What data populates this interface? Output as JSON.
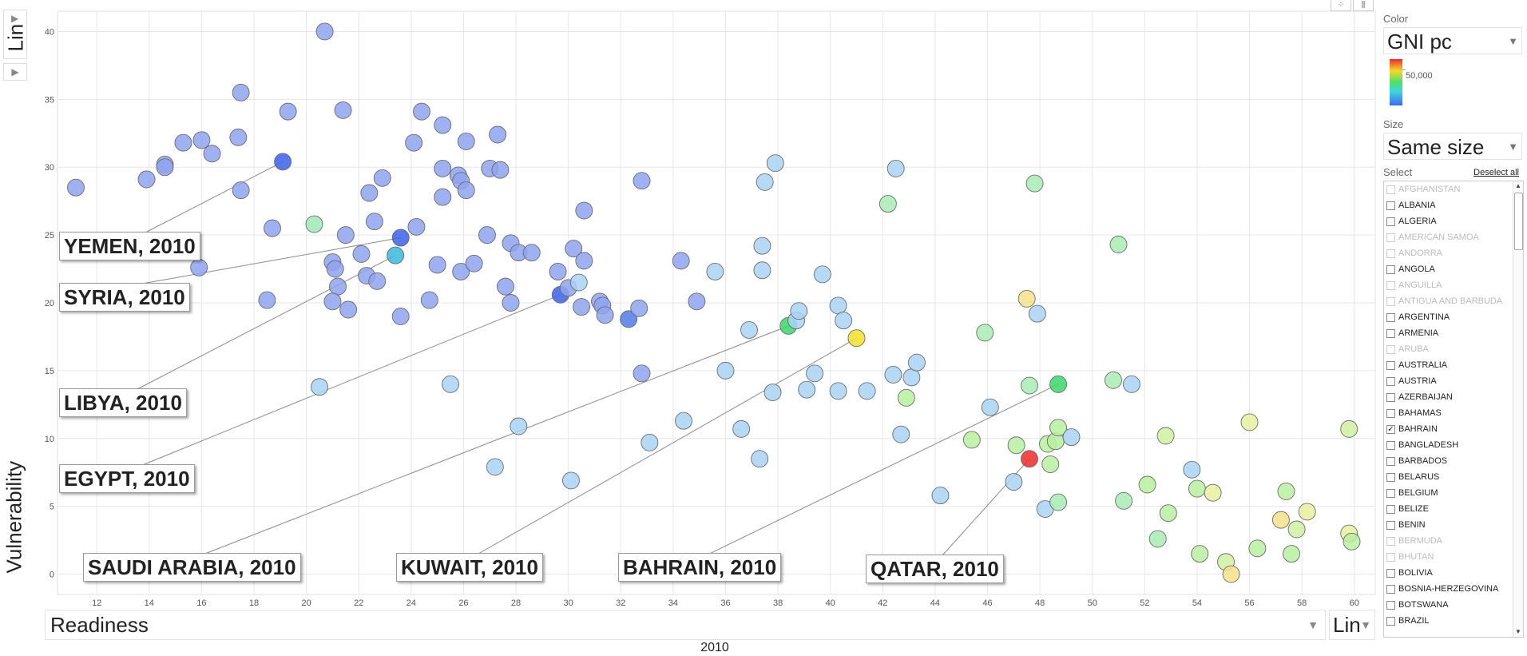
{
  "y_scale_control": {
    "label": "Lin",
    "arrow": "▶"
  },
  "expand_control": {
    "arrow": "▶"
  },
  "x_axis_select": {
    "label": "Readiness",
    "arrow": "▼"
  },
  "x_scale_control": {
    "label": "Lin",
    "arrow": "▼"
  },
  "time_label": "2010",
  "top_icons": {
    "bubble": "⁘",
    "bar": "⫼"
  },
  "panel": {
    "color_title": "Color",
    "color_value": "GNI pc",
    "legend_label": "50,000",
    "size_title": "Size",
    "size_value": "Same size",
    "select_title": "Select",
    "deselect_label": "Deselect all",
    "scroll_up": "▲",
    "scroll_down": "▼",
    "countries": [
      {
        "name": "AFGHANISTAN",
        "disabled": true,
        "checked": false
      },
      {
        "name": "ALBANIA",
        "disabled": false,
        "checked": false
      },
      {
        "name": "ALGERIA",
        "disabled": false,
        "checked": false
      },
      {
        "name": "AMERICAN SAMOA",
        "disabled": true,
        "checked": false
      },
      {
        "name": "ANDORRA",
        "disabled": true,
        "checked": false
      },
      {
        "name": "ANGOLA",
        "disabled": false,
        "checked": false
      },
      {
        "name": "ANGUILLA",
        "disabled": true,
        "checked": false
      },
      {
        "name": "ANTIGUA AND BARBUDA",
        "disabled": true,
        "checked": false
      },
      {
        "name": "ARGENTINA",
        "disabled": false,
        "checked": false
      },
      {
        "name": "ARMENIA",
        "disabled": false,
        "checked": false
      },
      {
        "name": "ARUBA",
        "disabled": true,
        "checked": false
      },
      {
        "name": "AUSTRALIA",
        "disabled": false,
        "checked": false
      },
      {
        "name": "AUSTRIA",
        "disabled": false,
        "checked": false
      },
      {
        "name": "AZERBAIJAN",
        "disabled": false,
        "checked": false
      },
      {
        "name": "BAHAMAS",
        "disabled": false,
        "checked": false
      },
      {
        "name": "BAHRAIN",
        "disabled": false,
        "checked": true
      },
      {
        "name": "BANGLADESH",
        "disabled": false,
        "checked": false
      },
      {
        "name": "BARBADOS",
        "disabled": false,
        "checked": false
      },
      {
        "name": "BELARUS",
        "disabled": false,
        "checked": false
      },
      {
        "name": "BELGIUM",
        "disabled": false,
        "checked": false
      },
      {
        "name": "BELIZE",
        "disabled": false,
        "checked": false
      },
      {
        "name": "BENIN",
        "disabled": false,
        "checked": false
      },
      {
        "name": "BERMUDA",
        "disabled": true,
        "checked": false
      },
      {
        "name": "BHUTAN",
        "disabled": true,
        "checked": false
      },
      {
        "name": "BOLIVIA",
        "disabled": false,
        "checked": false
      },
      {
        "name": "BOSNIA-HERZEGOVINA",
        "disabled": false,
        "checked": false
      },
      {
        "name": "BOTSWANA",
        "disabled": false,
        "checked": false
      },
      {
        "name": "BRAZIL",
        "disabled": false,
        "checked": false
      }
    ]
  },
  "colors": {
    "low": "#3f6aee",
    "mid": "#4fdf6a",
    "high": "#ee2a2a",
    "gridline": "#e6e6e6"
  },
  "chart_data": {
    "type": "scatter",
    "xlabel": "Readiness",
    "ylabel": "Vulnerability",
    "xlim": [
      10.5,
      60.8
    ],
    "ylim": [
      -1.5,
      41.5
    ],
    "xticks": [
      12,
      14,
      16,
      18,
      20,
      22,
      24,
      26,
      28,
      30,
      32,
      34,
      36,
      38,
      40,
      42,
      44,
      46,
      48,
      50,
      52,
      54,
      56,
      58,
      60
    ],
    "yticks": [
      0,
      5,
      10,
      15,
      20,
      25,
      30,
      35,
      40
    ],
    "grid": true,
    "color_by": "GNI pc",
    "points": [
      {
        "x": 11.2,
        "y": 28.5,
        "c": "#8fa3f0"
      },
      {
        "x": 13.9,
        "y": 29.1,
        "c": "#8fa3f0"
      },
      {
        "x": 14.6,
        "y": 30.2,
        "c": "#8fa3f0"
      },
      {
        "x": 14.6,
        "y": 30.0,
        "c": "#8fa3f0"
      },
      {
        "x": 15.3,
        "y": 31.8,
        "c": "#8fa3f0"
      },
      {
        "x": 16.0,
        "y": 32.0,
        "c": "#8fa3f0"
      },
      {
        "x": 16.4,
        "y": 31.0,
        "c": "#8fa3f0"
      },
      {
        "x": 15.9,
        "y": 22.6,
        "c": "#8fa3f0"
      },
      {
        "x": 17.4,
        "y": 32.2,
        "c": "#8fa3f0"
      },
      {
        "x": 17.5,
        "y": 35.5,
        "c": "#8fa3f0"
      },
      {
        "x": 17.5,
        "y": 28.3,
        "c": "#8fa3f0"
      },
      {
        "x": 18.7,
        "y": 25.5,
        "c": "#8fa3f0"
      },
      {
        "x": 18.5,
        "y": 20.2,
        "c": "#8fa3f0"
      },
      {
        "x": 19.3,
        "y": 34.1,
        "c": "#8fa3f0"
      },
      {
        "x": 19.1,
        "y": 30.4,
        "c": "#3b62e8"
      },
      {
        "x": 20.7,
        "y": 40.0,
        "c": "#8fa3f0"
      },
      {
        "x": 20.3,
        "y": 25.8,
        "c": "#a0e8b8"
      },
      {
        "x": 20.5,
        "y": 13.8,
        "c": "#a9d4f5"
      },
      {
        "x": 21.0,
        "y": 23.0,
        "c": "#8fa3f0"
      },
      {
        "x": 21.1,
        "y": 22.5,
        "c": "#8fa3f0"
      },
      {
        "x": 21.2,
        "y": 21.2,
        "c": "#8fa3f0"
      },
      {
        "x": 21.0,
        "y": 20.1,
        "c": "#8fa3f0"
      },
      {
        "x": 21.4,
        "y": 34.2,
        "c": "#8fa3f0"
      },
      {
        "x": 21.5,
        "y": 25.0,
        "c": "#8fa3f0"
      },
      {
        "x": 21.6,
        "y": 19.5,
        "c": "#8fa3f0"
      },
      {
        "x": 22.1,
        "y": 23.6,
        "c": "#8fa3f0"
      },
      {
        "x": 22.4,
        "y": 28.1,
        "c": "#8fa3f0"
      },
      {
        "x": 22.6,
        "y": 26.0,
        "c": "#8fa3f0"
      },
      {
        "x": 22.3,
        "y": 22.0,
        "c": "#8fa3f0"
      },
      {
        "x": 22.7,
        "y": 21.6,
        "c": "#8fa3f0"
      },
      {
        "x": 22.9,
        "y": 29.2,
        "c": "#8fa3f0"
      },
      {
        "x": 23.4,
        "y": 23.5,
        "c": "#3ab8dd"
      },
      {
        "x": 23.6,
        "y": 24.8,
        "c": "#3b62e8"
      },
      {
        "x": 23.6,
        "y": 19.0,
        "c": "#8fa3f0"
      },
      {
        "x": 24.1,
        "y": 31.8,
        "c": "#8fa3f0"
      },
      {
        "x": 24.2,
        "y": 25.6,
        "c": "#8fa3f0"
      },
      {
        "x": 24.4,
        "y": 34.1,
        "c": "#8fa3f0"
      },
      {
        "x": 24.7,
        "y": 20.2,
        "c": "#8fa3f0"
      },
      {
        "x": 25.0,
        "y": 22.8,
        "c": "#8fa3f0"
      },
      {
        "x": 25.2,
        "y": 33.1,
        "c": "#8fa3f0"
      },
      {
        "x": 25.2,
        "y": 29.9,
        "c": "#8fa3f0"
      },
      {
        "x": 25.2,
        "y": 27.8,
        "c": "#8fa3f0"
      },
      {
        "x": 25.5,
        "y": 14.0,
        "c": "#a9d4f5"
      },
      {
        "x": 25.8,
        "y": 29.4,
        "c": "#8fa3f0"
      },
      {
        "x": 25.9,
        "y": 29.0,
        "c": "#8fa3f0"
      },
      {
        "x": 25.9,
        "y": 22.3,
        "c": "#8fa3f0"
      },
      {
        "x": 26.1,
        "y": 31.9,
        "c": "#8fa3f0"
      },
      {
        "x": 26.1,
        "y": 28.3,
        "c": "#8fa3f0"
      },
      {
        "x": 26.4,
        "y": 22.9,
        "c": "#8fa3f0"
      },
      {
        "x": 26.9,
        "y": 25.0,
        "c": "#8fa3f0"
      },
      {
        "x": 27.0,
        "y": 29.9,
        "c": "#8fa3f0"
      },
      {
        "x": 27.3,
        "y": 32.4,
        "c": "#8fa3f0"
      },
      {
        "x": 27.4,
        "y": 29.8,
        "c": "#8fa3f0"
      },
      {
        "x": 27.6,
        "y": 21.2,
        "c": "#8fa3f0"
      },
      {
        "x": 27.2,
        "y": 7.9,
        "c": "#a9d4f5"
      },
      {
        "x": 27.8,
        "y": 24.4,
        "c": "#8fa3f0"
      },
      {
        "x": 27.8,
        "y": 20.0,
        "c": "#8fa3f0"
      },
      {
        "x": 28.1,
        "y": 23.7,
        "c": "#8fa3f0"
      },
      {
        "x": 28.1,
        "y": 10.9,
        "c": "#a9d4f5"
      },
      {
        "x": 28.6,
        "y": 23.7,
        "c": "#8fa3f0"
      },
      {
        "x": 29.6,
        "y": 22.3,
        "c": "#8fa3f0"
      },
      {
        "x": 29.7,
        "y": 20.6,
        "c": "#3b62e8"
      },
      {
        "x": 30.0,
        "y": 21.1,
        "c": "#8fa3f0"
      },
      {
        "x": 30.1,
        "y": 6.9,
        "c": "#a9d4f5"
      },
      {
        "x": 30.2,
        "y": 24.0,
        "c": "#8fa3f0"
      },
      {
        "x": 30.4,
        "y": 21.5,
        "c": "#a9d4f5"
      },
      {
        "x": 30.5,
        "y": 19.7,
        "c": "#8fa3f0"
      },
      {
        "x": 30.6,
        "y": 23.1,
        "c": "#8fa3f0"
      },
      {
        "x": 30.6,
        "y": 26.8,
        "c": "#8fa3f0"
      },
      {
        "x": 31.2,
        "y": 20.1,
        "c": "#8fa3f0"
      },
      {
        "x": 31.3,
        "y": 19.8,
        "c": "#8fa3f0"
      },
      {
        "x": 31.4,
        "y": 19.1,
        "c": "#8fa3f0"
      },
      {
        "x": 32.3,
        "y": 18.8,
        "c": "#4f7ae8"
      },
      {
        "x": 32.7,
        "y": 19.6,
        "c": "#8fa3f0"
      },
      {
        "x": 32.8,
        "y": 29.0,
        "c": "#8fa3f0"
      },
      {
        "x": 32.8,
        "y": 14.8,
        "c": "#8fa3f0"
      },
      {
        "x": 33.1,
        "y": 9.7,
        "c": "#a9d4f5"
      },
      {
        "x": 34.3,
        "y": 23.1,
        "c": "#8fa3f0"
      },
      {
        "x": 34.4,
        "y": 11.3,
        "c": "#a9d4f5"
      },
      {
        "x": 34.9,
        "y": 20.1,
        "c": "#8fa3f0"
      },
      {
        "x": 35.6,
        "y": 22.3,
        "c": "#a9d4f5"
      },
      {
        "x": 36.0,
        "y": 15.0,
        "c": "#a9d4f5"
      },
      {
        "x": 36.6,
        "y": 10.7,
        "c": "#a9d4f5"
      },
      {
        "x": 36.9,
        "y": 18.0,
        "c": "#a9d4f5"
      },
      {
        "x": 37.3,
        "y": 8.5,
        "c": "#a9d4f5"
      },
      {
        "x": 37.4,
        "y": 22.4,
        "c": "#a9d4f5"
      },
      {
        "x": 37.4,
        "y": 24.2,
        "c": "#a9d4f5"
      },
      {
        "x": 37.5,
        "y": 28.9,
        "c": "#a9d4f5"
      },
      {
        "x": 37.8,
        "y": 13.4,
        "c": "#a9d4f5"
      },
      {
        "x": 37.9,
        "y": 30.3,
        "c": "#a9d4f5"
      },
      {
        "x": 38.4,
        "y": 18.3,
        "c": "#3ad66a"
      },
      {
        "x": 38.7,
        "y": 18.7,
        "c": "#a9d4f5"
      },
      {
        "x": 38.8,
        "y": 19.4,
        "c": "#a9d4f5"
      },
      {
        "x": 39.1,
        "y": 13.6,
        "c": "#a9d4f5"
      },
      {
        "x": 39.4,
        "y": 14.8,
        "c": "#a9d4f5"
      },
      {
        "x": 39.7,
        "y": 22.1,
        "c": "#a9d4f5"
      },
      {
        "x": 40.3,
        "y": 19.8,
        "c": "#a9d4f5"
      },
      {
        "x": 40.3,
        "y": 13.5,
        "c": "#a9d4f5"
      },
      {
        "x": 40.5,
        "y": 18.7,
        "c": "#a9d4f5"
      },
      {
        "x": 41.0,
        "y": 17.4,
        "c": "#f5e02a"
      },
      {
        "x": 41.4,
        "y": 13.5,
        "c": "#a9d4f5"
      },
      {
        "x": 42.2,
        "y": 27.3,
        "c": "#a8ecb5"
      },
      {
        "x": 42.4,
        "y": 14.7,
        "c": "#a9d4f5"
      },
      {
        "x": 42.5,
        "y": 29.9,
        "c": "#a9d4f5"
      },
      {
        "x": 42.7,
        "y": 10.3,
        "c": "#a9d4f5"
      },
      {
        "x": 42.9,
        "y": 13.0,
        "c": "#b8eea0"
      },
      {
        "x": 43.1,
        "y": 14.5,
        "c": "#a9d4f5"
      },
      {
        "x": 43.3,
        "y": 15.6,
        "c": "#a9d4f5"
      },
      {
        "x": 44.2,
        "y": 5.8,
        "c": "#a9d4f5"
      },
      {
        "x": 45.4,
        "y": 9.9,
        "c": "#b8eea0"
      },
      {
        "x": 45.9,
        "y": 17.8,
        "c": "#a8ecb5"
      },
      {
        "x": 46.1,
        "y": 12.3,
        "c": "#a9d4f5"
      },
      {
        "x": 47.0,
        "y": 6.8,
        "c": "#a9d4f5"
      },
      {
        "x": 47.1,
        "y": 9.5,
        "c": "#b8eea0"
      },
      {
        "x": 47.5,
        "y": 20.3,
        "c": "#f5e08a"
      },
      {
        "x": 47.6,
        "y": 13.9,
        "c": "#a8ecb5"
      },
      {
        "x": 47.6,
        "y": 8.5,
        "c": "#ee2a2a"
      },
      {
        "x": 47.8,
        "y": 28.8,
        "c": "#a8ecb5"
      },
      {
        "x": 47.9,
        "y": 19.2,
        "c": "#a9d4f5"
      },
      {
        "x": 48.2,
        "y": 4.8,
        "c": "#a9d4f5"
      },
      {
        "x": 48.3,
        "y": 9.6,
        "c": "#b8eea0"
      },
      {
        "x": 48.4,
        "y": 8.1,
        "c": "#b8eea0"
      },
      {
        "x": 48.6,
        "y": 9.8,
        "c": "#b8eea0"
      },
      {
        "x": 48.7,
        "y": 14.0,
        "c": "#3ad66a"
      },
      {
        "x": 48.7,
        "y": 10.8,
        "c": "#b8eea0"
      },
      {
        "x": 48.7,
        "y": 5.3,
        "c": "#a8ecb5"
      },
      {
        "x": 49.2,
        "y": 10.1,
        "c": "#a9d4f5"
      },
      {
        "x": 50.8,
        "y": 14.3,
        "c": "#a8ecb5"
      },
      {
        "x": 51.0,
        "y": 24.3,
        "c": "#a8ecb5"
      },
      {
        "x": 51.2,
        "y": 5.4,
        "c": "#a8ecb5"
      },
      {
        "x": 51.5,
        "y": 14.0,
        "c": "#a9d4f5"
      },
      {
        "x": 52.1,
        "y": 6.6,
        "c": "#b8eea0"
      },
      {
        "x": 52.5,
        "y": 2.6,
        "c": "#a8ecb5"
      },
      {
        "x": 52.8,
        "y": 10.2,
        "c": "#d0f0a0"
      },
      {
        "x": 52.9,
        "y": 4.5,
        "c": "#b8eea0"
      },
      {
        "x": 53.8,
        "y": 7.7,
        "c": "#a9d4f5"
      },
      {
        "x": 54.0,
        "y": 6.3,
        "c": "#b8eea0"
      },
      {
        "x": 54.1,
        "y": 1.5,
        "c": "#b8eea0"
      },
      {
        "x": 54.6,
        "y": 6.0,
        "c": "#e8f0a0"
      },
      {
        "x": 55.1,
        "y": 0.9,
        "c": "#d0f0a0"
      },
      {
        "x": 55.3,
        "y": 0.0,
        "c": "#f5e08a"
      },
      {
        "x": 56.0,
        "y": 11.2,
        "c": "#e8f0a0"
      },
      {
        "x": 56.3,
        "y": 1.9,
        "c": "#b8eea0"
      },
      {
        "x": 57.2,
        "y": 4.0,
        "c": "#f5e08a"
      },
      {
        "x": 57.4,
        "y": 6.1,
        "c": "#b8eea0"
      },
      {
        "x": 57.6,
        "y": 1.5,
        "c": "#b8eea0"
      },
      {
        "x": 57.8,
        "y": 3.3,
        "c": "#d0f0a0"
      },
      {
        "x": 58.2,
        "y": 4.6,
        "c": "#e8f0a0"
      },
      {
        "x": 59.8,
        "y": 10.7,
        "c": "#d0f0a0"
      },
      {
        "x": 59.8,
        "y": 3.0,
        "c": "#e8f0a0"
      },
      {
        "x": 59.9,
        "y": 2.4,
        "c": "#b8eea0"
      }
    ],
    "annotations": [
      {
        "label": "YEMEN, 2010",
        "x": 19.1,
        "y": 30.4
      },
      {
        "label": "SYRIA, 2010",
        "x": 23.6,
        "y": 24.8
      },
      {
        "label": "LIBYA, 2010",
        "x": 23.4,
        "y": 23.5
      },
      {
        "label": "EGYPT, 2010",
        "x": 29.7,
        "y": 20.6
      },
      {
        "label": "SAUDI ARABIA, 2010",
        "x": 38.4,
        "y": 18.3
      },
      {
        "label": "KUWAIT, 2010",
        "x": 41.0,
        "y": 17.4
      },
      {
        "label": "BAHRAIN, 2010",
        "x": 48.7,
        "y": 14.0
      },
      {
        "label": "QATAR, 2010",
        "x": 47.6,
        "y": 8.5
      }
    ]
  }
}
